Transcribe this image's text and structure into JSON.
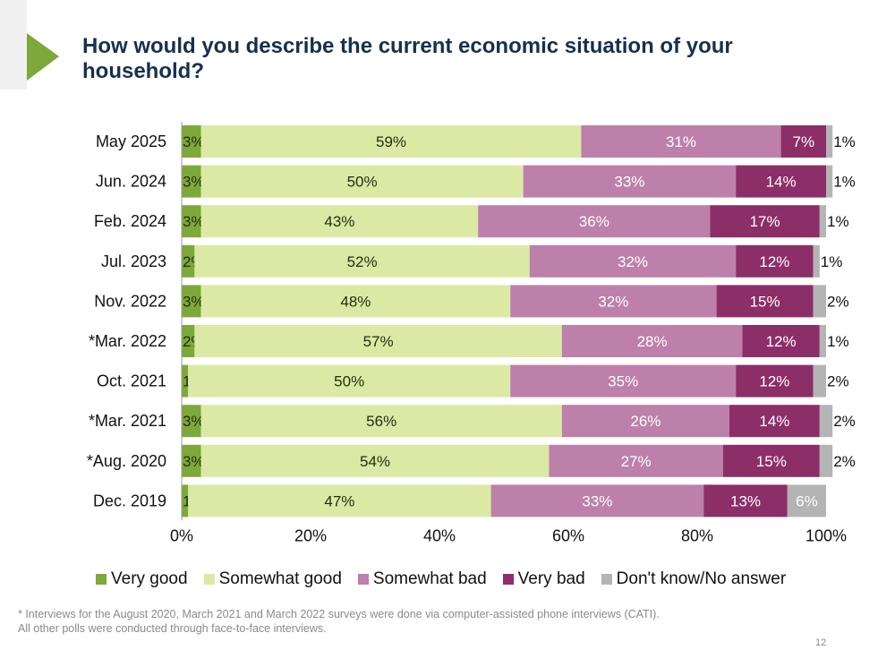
{
  "header": {
    "title": "How would you describe the current economic situation of your household?"
  },
  "chart_data": {
    "type": "bar",
    "orientation": "horizontal",
    "stacked": true,
    "categories": [
      "May 2025",
      "Jun. 2024",
      "Feb. 2024",
      "Jul. 2023",
      "Nov. 2022",
      "*Mar. 2022",
      "Oct. 2021",
      "*Mar. 2021",
      "*Aug. 2020",
      "Dec. 2019"
    ],
    "series": [
      {
        "name": "Very good",
        "color": "#7ea83a",
        "label_color": "#1f2d0e",
        "values": [
          3,
          3,
          3,
          2,
          3,
          2,
          1,
          3,
          3,
          1
        ]
      },
      {
        "name": "Somewhat good",
        "color": "#dce9a5",
        "label_color": "#1f2d0e",
        "values": [
          59,
          50,
          43,
          52,
          48,
          57,
          50,
          56,
          54,
          47
        ]
      },
      {
        "name": "Somewhat bad",
        "color": "#bd80aa",
        "label_color": "#ffffff",
        "values": [
          31,
          33,
          36,
          32,
          32,
          28,
          35,
          26,
          27,
          33
        ]
      },
      {
        "name": "Very bad",
        "color": "#8c2e68",
        "label_color": "#ffffff",
        "values": [
          7,
          14,
          17,
          12,
          15,
          12,
          12,
          14,
          15,
          13
        ]
      },
      {
        "name": "Don't know/No answer",
        "color": "#b4b4b4",
        "label_color": "#ffffff",
        "values": [
          1,
          1,
          1,
          1,
          2,
          1,
          2,
          2,
          2,
          6
        ]
      }
    ],
    "xlim": [
      0,
      100
    ],
    "x_ticks": [
      "0%",
      "20%",
      "40%",
      "60%",
      "80%",
      "100%"
    ],
    "legend_position": "bottom",
    "grid": false
  },
  "footnote": {
    "line1": "* Interviews for the August 2020, March 2021 and March 2022 surveys were done via computer-assisted phone interviews (CATI).",
    "line2": "All other polls were conducted through face-to-face interviews."
  },
  "page_number": "12",
  "colors": {
    "accent": "#7ea83a",
    "title": "#17304d"
  }
}
